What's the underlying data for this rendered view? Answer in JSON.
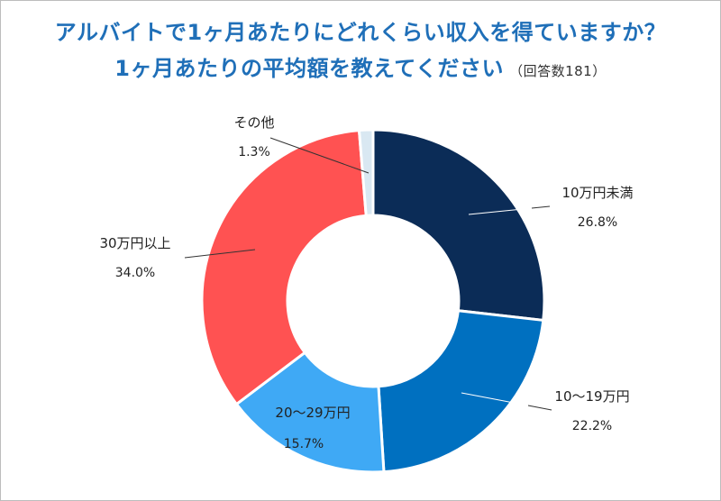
{
  "title_line1": "アルバイトで1ヶ月あたりにどれくらい収入を得ていますか？",
  "title_line2": "1ヶ月あたりの平均額を教えてください",
  "respondents": "（回答数181）",
  "chart_data": {
    "type": "pie",
    "donut": true,
    "start": "12 o'clock, clockwise",
    "slices": [
      {
        "label": "10万円未満",
        "value": 26.8,
        "display": "26.8%",
        "color": "#0b2c57"
      },
      {
        "label": "10〜19万円",
        "value": 22.2,
        "display": "22.2%",
        "color": "#0070c0"
      },
      {
        "label": "20〜29万円",
        "value": 15.7,
        "display": "15.7%",
        "color": "#3fa9f5"
      },
      {
        "label": "30万円以上",
        "value": 34.0,
        "display": "34.0%",
        "color": "#ff5252"
      },
      {
        "label": "その他",
        "value": 1.3,
        "display": "1.3%",
        "color": "#d9e8f2"
      }
    ]
  }
}
